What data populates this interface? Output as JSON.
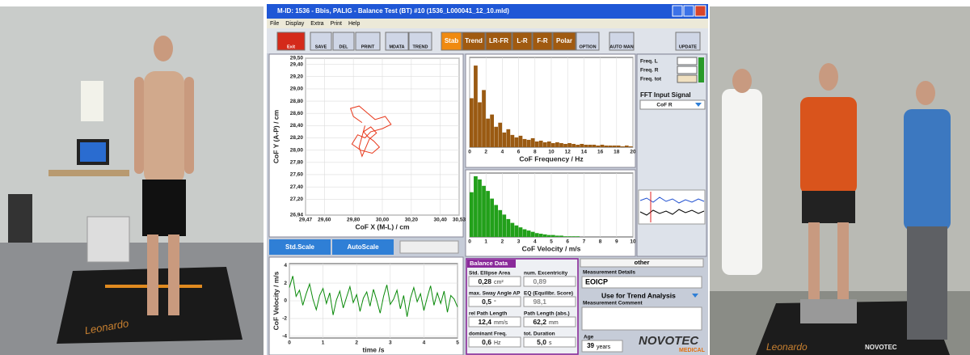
{
  "window": {
    "title": "M-ID: 1536 - Bbis, PALIG - Balance Test (BT) #10 (1536_L000041_12_10.mld)",
    "menu": [
      "File",
      "Display",
      "Extra",
      "Print",
      "Help"
    ],
    "toolbar": [
      "Exit",
      "SAVE",
      "DEL",
      "PRINT",
      "MDATA",
      "TREND",
      "Stab",
      "Trend",
      "LR-FR",
      "L-R",
      "F-R",
      "Polar",
      "OPTION",
      "AUTO MAN",
      "UPDATE"
    ],
    "scale_buttons": [
      "Std.Scale",
      "AutoScale"
    ]
  },
  "side_panel": {
    "freq_labels": [
      "Freq. L",
      "Freq. R",
      "Freq. tot"
    ],
    "fft_title": "FFT Input Signal",
    "fft_select": "CoF R"
  },
  "balance_data": {
    "title": "Balance Data",
    "fields": [
      {
        "label": "Std. Ellipse Area",
        "value": "0,28",
        "unit": "cm²"
      },
      {
        "label": "num. Excentricity",
        "value": "0,89"
      },
      {
        "label": "max. Sway Angle AP",
        "value": "0,5",
        "unit": "°"
      },
      {
        "label": "EQ (Equilibr. Score)",
        "value": "98,1"
      },
      {
        "label": "rel Path Length",
        "value": "12,4",
        "unit": "mm/s"
      },
      {
        "label": "Path Length (abs.)",
        "value": "62,2",
        "unit": "mm"
      },
      {
        "label": "dominant Freq.",
        "value": "0,6",
        "unit": "Hz"
      },
      {
        "label": "tot. Duration",
        "value": "5,0",
        "unit": "s"
      }
    ]
  },
  "measurement": {
    "tab": "other",
    "details_label": "Measurement Details",
    "details": "EOICP",
    "trend": "Use for Trend Analysis",
    "comment_label": "Measurement Comment",
    "age_label": "Age",
    "age": "39",
    "age_unit": "years",
    "brand": "NOVOTEC",
    "brand_sub": "MEDICAL"
  },
  "photos": {
    "left_platform": "Leonardo",
    "right_platform": "Leonardo",
    "right_logo": "NOVOTEC"
  },
  "chart_data": [
    {
      "type": "line",
      "xlabel": "CoF X (M-L) / cm",
      "ylabel": "CoF Y (A-P) / cm",
      "color": "#e8391c",
      "grid": true,
      "xlim": [
        29.47,
        30.53
      ],
      "ylim": [
        26.94,
        29.5
      ],
      "xticks": [
        {
          "value": 29.47,
          "label": "29,47"
        },
        {
          "value": 29.6,
          "label": "29,60"
        },
        {
          "value": 29.8,
          "label": "29,80"
        },
        {
          "value": 30,
          "label": "30,00"
        },
        {
          "value": 30.2,
          "label": "30,20"
        },
        {
          "value": 30.4,
          "label": "30,40"
        },
        {
          "value": 30.53,
          "label": "30,53"
        }
      ],
      "yticks": [
        {
          "value": 29.5,
          "label": "29,50"
        },
        {
          "value": 29.4,
          "label": "29,40"
        },
        {
          "value": 29.2,
          "label": "29,20"
        },
        {
          "value": 29,
          "label": "29,00"
        },
        {
          "value": 28.8,
          "label": "28,80"
        },
        {
          "value": 28.6,
          "label": "28,60"
        },
        {
          "value": 28.4,
          "label": "28,40"
        },
        {
          "value": 28.2,
          "label": "28,20"
        },
        {
          "value": 28,
          "label": "28,00"
        },
        {
          "value": 27.8,
          "label": "27,80"
        },
        {
          "value": 27.6,
          "label": "27,60"
        },
        {
          "value": 27.4,
          "label": "27,40"
        },
        {
          "value": 27.2,
          "label": "27,20"
        },
        {
          "value": 26.94,
          "label": "26,94"
        }
      ],
      "x": [
        29.86,
        29.8,
        29.78,
        29.84,
        29.9,
        29.95,
        30.02,
        30.06,
        30,
        29.92,
        29.88,
        29.83,
        29.79,
        29.85,
        29.93,
        29.98,
        29.94,
        29.9,
        29.87,
        29.92,
        29.96,
        29.91,
        29.86,
        29.84,
        29.88
      ],
      "values": [
        28.45,
        28.55,
        28.68,
        28.72,
        28.6,
        28.5,
        28.55,
        28.42,
        28.35,
        28.3,
        28.2,
        28.25,
        28.1,
        28,
        27.95,
        28.05,
        28.15,
        28.22,
        28.3,
        28.38,
        28.28,
        28.18,
        27.9,
        28.05,
        28.4
      ]
    },
    {
      "type": "line",
      "xlabel": "time /s",
      "ylabel": "CoF Velocity / m/s",
      "color": "#0a8a0a",
      "grid": true,
      "xlim": [
        0,
        5
      ],
      "ylim": [
        -4.2,
        4.2
      ],
      "xticks": [
        0,
        1,
        2,
        3,
        4,
        5
      ],
      "yticks": [
        4,
        2,
        0,
        -2,
        -4
      ],
      "x": [
        0,
        0.1,
        0.2,
        0.3,
        0.4,
        0.5,
        0.6,
        0.7,
        0.8,
        0.9,
        1,
        1.1,
        1.2,
        1.3,
        1.4,
        1.5,
        1.6,
        1.7,
        1.8,
        1.9,
        2,
        2.1,
        2.2,
        2.3,
        2.4,
        2.5,
        2.6,
        2.7,
        2.8,
        2.9,
        3,
        3.1,
        3.2,
        3.3,
        3.4,
        3.5,
        3.6,
        3.7,
        3.8,
        3.9,
        4,
        4.1,
        4.2,
        4.3,
        4.4,
        4.5,
        4.6,
        4.7,
        4.8,
        4.9,
        5
      ],
      "values": [
        1.5,
        2.8,
        0.5,
        1.2,
        -0.5,
        0.8,
        1.9,
        0.2,
        -1,
        0.6,
        1.4,
        -0.3,
        0.9,
        -1.6,
        0.1,
        1.1,
        -0.8,
        0.4,
        1.6,
        -0.2,
        0.7,
        -1.2,
        0.3,
        1,
        -0.6,
        1.3,
        0,
        -1.4,
        0.5,
        1.8,
        -0.4,
        0.2,
        1.2,
        -0.9,
        0.6,
        -1.8,
        0.3,
        1.5,
        -0.1,
        0.8,
        -1.1,
        0.4,
        1.7,
        -0.5,
        0.9,
        -0.3,
        1.1,
        -1.3,
        0.6,
        0.2,
        -0.7
      ]
    },
    {
      "type": "histogram",
      "xlabel": "CoF Frequency / Hz",
      "color": "#9a5a12",
      "grid": true,
      "xlim": [
        0,
        20
      ],
      "ylim": [
        0,
        110
      ],
      "xticks": [
        0,
        2,
        4,
        6,
        8,
        10,
        12,
        14,
        16,
        18,
        20
      ],
      "bins": [
        0,
        0.5,
        1,
        1.5,
        2,
        2.5,
        3,
        3.5,
        4,
        4.5,
        5,
        5.5,
        6,
        6.5,
        7,
        7.5,
        8,
        8.5,
        9,
        9.5,
        10,
        10.5,
        11,
        11.5,
        12,
        12.5,
        13,
        13.5,
        14,
        14.5,
        15,
        15.5,
        16,
        16.5,
        17,
        17.5,
        18,
        18.5,
        19,
        19.5,
        20
      ],
      "values": [
        60,
        100,
        55,
        70,
        35,
        40,
        25,
        30,
        18,
        22,
        15,
        12,
        14,
        10,
        9,
        11,
        7,
        8,
        6,
        7,
        5,
        6,
        5,
        4,
        5,
        4,
        3,
        4,
        3,
        3,
        3,
        2,
        3,
        2,
        2,
        2,
        2,
        1,
        2,
        1
      ]
    },
    {
      "type": "histogram",
      "xlabel": "CoF Velocity  / m/s",
      "color": "#22a01a",
      "grid": true,
      "xlim": [
        0,
        10
      ],
      "ylim": [
        0,
        100
      ],
      "xticks": [
        0,
        1,
        2,
        3,
        4,
        5,
        6,
        7,
        8,
        9,
        10
      ],
      "bins": [
        0,
        0.25,
        0.5,
        0.75,
        1,
        1.25,
        1.5,
        1.75,
        2,
        2.25,
        2.5,
        2.75,
        3,
        3.25,
        3.5,
        3.75,
        4,
        4.25,
        4.5,
        4.75,
        5,
        5.25,
        5.5,
        5.75,
        6,
        6.25,
        6.5,
        6.75,
        7,
        7.25,
        7.5,
        7.75,
        8,
        8.25,
        8.5,
        8.75,
        9,
        9.25,
        9.5,
        9.75,
        10
      ],
      "values": [
        70,
        95,
        90,
        80,
        72,
        60,
        50,
        42,
        35,
        28,
        22,
        18,
        15,
        12,
        10,
        8,
        6,
        5,
        4,
        3,
        3,
        2,
        2,
        1,
        1,
        1,
        1,
        0,
        0,
        0,
        0,
        0,
        0,
        0,
        0,
        0,
        0,
        0,
        0,
        0
      ]
    }
  ]
}
